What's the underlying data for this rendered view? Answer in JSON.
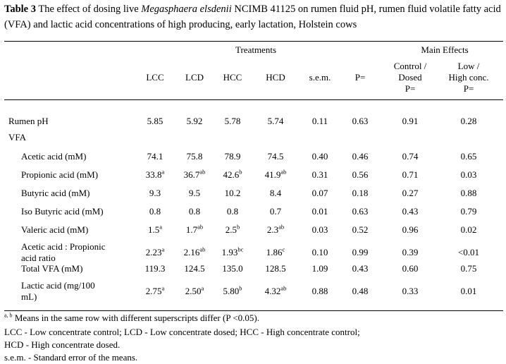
{
  "caption": {
    "label": "Table 3",
    "text_before": " The effect of dosing live ",
    "species": "Megasphaera elsdenii",
    "text_after": " NCIMB 41125 on rumen fluid pH, rumen fluid volatile fatty acid (VFA) and lactic acid concentrations of high producing, early lactation, Holstein cows"
  },
  "header": {
    "group_treatments": "Treatments",
    "group_main_effects": "Main Effects",
    "columns": [
      "LCC",
      "LCD",
      "HCC",
      "HCD",
      "s.e.m.",
      "P="
    ],
    "effect1": [
      "Control /",
      "Dosed",
      "P="
    ],
    "effect2": [
      "Low /",
      "High conc.",
      "P="
    ]
  },
  "rows": [
    {
      "label": "Rumen pH",
      "vals": [
        [
          "5.85",
          ""
        ],
        [
          "5.92",
          ""
        ],
        [
          "5.78",
          ""
        ],
        [
          "5.74",
          ""
        ]
      ],
      "sem": "0.11",
      "p": "0.63",
      "e1": "0.91",
      "e2": "0.28"
    },
    {
      "label": "VFA"
    },
    {
      "label": "Acetic acid (mM)",
      "vals": [
        [
          "74.1",
          ""
        ],
        [
          "75.8",
          ""
        ],
        [
          "78.9",
          ""
        ],
        [
          "74.5",
          ""
        ]
      ],
      "sem": "0.40",
      "p": "0.46",
      "e1": "0.74",
      "e2": "0.65"
    },
    {
      "label": "Propionic acid (mM)",
      "vals": [
        [
          "33.8",
          "a"
        ],
        [
          "36.7",
          "ab"
        ],
        [
          "42.6",
          "b"
        ],
        [
          "41.9",
          "ab"
        ]
      ],
      "sem": "0.31",
      "p": "0.56",
      "e1": "0.71",
      "e2": "0.03"
    },
    {
      "label": "Butyric acid (mM)",
      "vals": [
        [
          "9.3",
          ""
        ],
        [
          "9.5",
          ""
        ],
        [
          "10.2",
          ""
        ],
        [
          "8.4",
          ""
        ]
      ],
      "sem": "0.07",
      "p": "0.18",
      "e1": "0.27",
      "e2": "0.88"
    },
    {
      "label": "Iso Butyric acid (mM)",
      "vals": [
        [
          "0.8",
          ""
        ],
        [
          "0.8",
          ""
        ],
        [
          "0.8",
          ""
        ],
        [
          "0.7",
          ""
        ]
      ],
      "sem": "0.01",
      "p": "0.63",
      "e1": "0.43",
      "e2": "0.79"
    },
    {
      "label": "Valeric acid (mM)",
      "vals": [
        [
          "1.5",
          "a"
        ],
        [
          "1.7",
          "ab"
        ],
        [
          "2.5",
          "b"
        ],
        [
          "2.3",
          "ab"
        ]
      ],
      "sem": "0.03",
      "p": "0.52",
      "e1": "0.96",
      "e2": "0.02"
    },
    {
      "label": "Acetic acid : Propionic",
      "label2": "acid ratio",
      "vals": [
        [
          "2.23",
          "a"
        ],
        [
          "2.16",
          "ab"
        ],
        [
          "1.93",
          "bc"
        ],
        [
          "1.86",
          "c"
        ]
      ],
      "sem": "0.10",
      "p": "0.99",
      "e1": "0.39",
      "e2": "<0.01"
    },
    {
      "label": "Total VFA (mM)",
      "vals": [
        [
          "119.3",
          ""
        ],
        [
          "124.5",
          ""
        ],
        [
          "135.0",
          ""
        ],
        [
          "128.5",
          ""
        ]
      ],
      "sem": "1.09",
      "p": "0.43",
      "e1": "0.60",
      "e2": "0.75"
    },
    {
      "label": "Lactic acid (mg/100",
      "label2": "mL)",
      "vals": [
        [
          "2.75",
          "a"
        ],
        [
          "2.50",
          "a"
        ],
        [
          "5.80",
          "b"
        ],
        [
          "4.32",
          "ab"
        ]
      ],
      "sem": "0.88",
      "p": "0.48",
      "e1": "0.33",
      "e2": "0.01"
    }
  ],
  "footnotes": {
    "sup": "a, b",
    "means": "Means in the same row with different superscripts differ (P <0.05).",
    "abbrev1": "LCC - Low concentrate control; LCD - Low concentrate dosed; HCC - High concentrate control;",
    "abbrev2": "HCD - High concentrate dosed.",
    "sem": "s.e.m. - Standard error of the means."
  }
}
